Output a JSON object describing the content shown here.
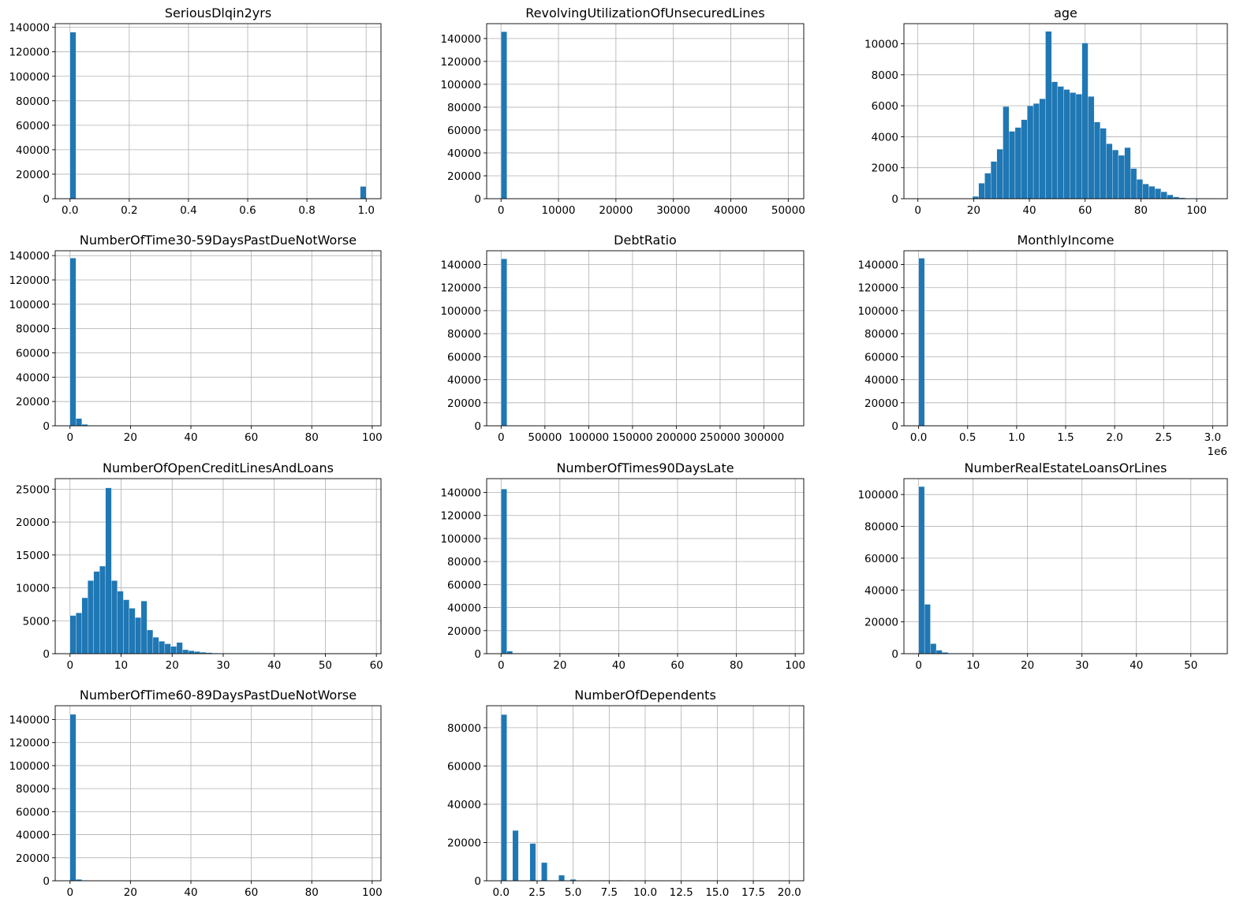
{
  "chart_data": [
    {
      "type": "bar",
      "title": "SeriousDlqin2yrs",
      "xlim": [
        -0.05,
        1.05
      ],
      "ylim": [
        0,
        143000
      ],
      "xticks": [
        0.0,
        0.2,
        0.4,
        0.6,
        0.8,
        1.0
      ],
      "xtick_labels": [
        "0.0",
        "0.2",
        "0.4",
        "0.6",
        "0.8",
        "1.0"
      ],
      "yticks": [
        0,
        20000,
        40000,
        60000,
        80000,
        100000,
        120000,
        140000
      ],
      "ytick_labels": [
        "0",
        "20000",
        "40000",
        "60000",
        "80000",
        "100000",
        "120000",
        "140000"
      ],
      "bins": {
        "start": 0.0,
        "width": 0.02
      },
      "bars": [
        {
          "i": 0,
          "v": 136000
        },
        {
          "i": 49,
          "v": 10000
        }
      ]
    },
    {
      "type": "bar",
      "title": "RevolvingUtilizationOfUnsecuredLines",
      "xlim": [
        -2500,
        52700
      ],
      "ylim": [
        0,
        153000
      ],
      "xticks": [
        0,
        10000,
        20000,
        30000,
        40000,
        50000
      ],
      "xtick_labels": [
        "0",
        "10000",
        "20000",
        "30000",
        "40000",
        "50000"
      ],
      "yticks": [
        0,
        20000,
        40000,
        60000,
        80000,
        100000,
        120000,
        140000
      ],
      "ytick_labels": [
        "0",
        "20000",
        "40000",
        "60000",
        "80000",
        "100000",
        "120000",
        "140000"
      ],
      "bins": {
        "start": 0,
        "width": 1017
      },
      "bars": [
        {
          "i": 0,
          "v": 146000
        }
      ]
    },
    {
      "type": "bar",
      "title": "age",
      "xlim": [
        -5,
        111
      ],
      "ylim": [
        0,
        11300
      ],
      "xticks": [
        0,
        20,
        40,
        60,
        80,
        100
      ],
      "xtick_labels": [
        "0",
        "20",
        "40",
        "60",
        "80",
        "100"
      ],
      "yticks": [
        0,
        2000,
        4000,
        6000,
        8000,
        10000
      ],
      "ytick_labels": [
        "0",
        "2000",
        "4000",
        "6000",
        "8000",
        "10000"
      ],
      "bins": {
        "start": 0,
        "width": 2.18
      },
      "bars": [
        {
          "i": 9,
          "v": 150
        },
        {
          "i": 10,
          "v": 1000
        },
        {
          "i": 11,
          "v": 1650
        },
        {
          "i": 12,
          "v": 2400
        },
        {
          "i": 13,
          "v": 3200
        },
        {
          "i": 14,
          "v": 5950
        },
        {
          "i": 15,
          "v": 4350
        },
        {
          "i": 16,
          "v": 4600
        },
        {
          "i": 17,
          "v": 5100
        },
        {
          "i": 18,
          "v": 6000
        },
        {
          "i": 19,
          "v": 6150
        },
        {
          "i": 20,
          "v": 6450
        },
        {
          "i": 21,
          "v": 10800
        },
        {
          "i": 22,
          "v": 7550
        },
        {
          "i": 23,
          "v": 7250
        },
        {
          "i": 24,
          "v": 7050
        },
        {
          "i": 25,
          "v": 6850
        },
        {
          "i": 26,
          "v": 6750
        },
        {
          "i": 27,
          "v": 10050
        },
        {
          "i": 28,
          "v": 6600
        },
        {
          "i": 29,
          "v": 4950
        },
        {
          "i": 30,
          "v": 4550
        },
        {
          "i": 31,
          "v": 3550
        },
        {
          "i": 32,
          "v": 3150
        },
        {
          "i": 33,
          "v": 2800
        },
        {
          "i": 34,
          "v": 3300
        },
        {
          "i": 35,
          "v": 1950
        },
        {
          "i": 36,
          "v": 1250
        },
        {
          "i": 37,
          "v": 950
        },
        {
          "i": 38,
          "v": 800
        },
        {
          "i": 39,
          "v": 650
        },
        {
          "i": 40,
          "v": 450
        },
        {
          "i": 41,
          "v": 250
        },
        {
          "i": 42,
          "v": 120
        },
        {
          "i": 43,
          "v": 60
        },
        {
          "i": 44,
          "v": 30
        },
        {
          "i": 45,
          "v": 15
        },
        {
          "i": 46,
          "v": 10
        },
        {
          "i": 47,
          "v": 5
        }
      ]
    },
    {
      "type": "bar",
      "title": "NumberOfTime30-59DaysPastDueNotWorse",
      "xlim": [
        -4.9,
        102.9
      ],
      "ylim": [
        0,
        144000
      ],
      "xticks": [
        0,
        20,
        40,
        60,
        80,
        100
      ],
      "xtick_labels": [
        "0",
        "20",
        "40",
        "60",
        "80",
        "100"
      ],
      "yticks": [
        0,
        20000,
        40000,
        60000,
        80000,
        100000,
        120000,
        140000
      ],
      "ytick_labels": [
        "0",
        "20000",
        "40000",
        "60000",
        "80000",
        "100000",
        "120000",
        "140000"
      ],
      "bins": {
        "start": 0,
        "width": 1.96
      },
      "bars": [
        {
          "i": 0,
          "v": 138000
        },
        {
          "i": 1,
          "v": 6000
        },
        {
          "i": 2,
          "v": 1200
        },
        {
          "i": 3,
          "v": 300
        },
        {
          "i": 49,
          "v": 270
        }
      ]
    },
    {
      "type": "bar",
      "title": "DebtRatio",
      "xlim": [
        -16500,
        345500
      ],
      "ylim": [
        0,
        152000
      ],
      "xticks": [
        0,
        50000,
        100000,
        150000,
        200000,
        250000,
        300000
      ],
      "xtick_labels": [
        "0",
        "50000",
        "100000",
        "150000",
        "200000",
        "250000",
        "300000"
      ],
      "yticks": [
        0,
        20000,
        40000,
        60000,
        80000,
        100000,
        120000,
        140000
      ],
      "ytick_labels": [
        "0",
        "20000",
        "40000",
        "60000",
        "80000",
        "100000",
        "120000",
        "140000"
      ],
      "bins": {
        "start": 0,
        "width": 6585
      },
      "bars": [
        {
          "i": 0,
          "v": 145000
        }
      ]
    },
    {
      "type": "bar",
      "title": "MonthlyIncome",
      "xlim": [
        -150000,
        3150000
      ],
      "ylim": [
        0,
        152000
      ],
      "xticks": [
        0,
        500000,
        1000000,
        1500000,
        2000000,
        2500000,
        3000000
      ],
      "xtick_labels": [
        "0.0",
        "0.5",
        "1.0",
        "1.5",
        "2.0",
        "2.5",
        "3.0"
      ],
      "offset_text": "1e6",
      "yticks": [
        0,
        20000,
        40000,
        60000,
        80000,
        100000,
        120000,
        140000
      ],
      "ytick_labels": [
        "0",
        "20000",
        "40000",
        "60000",
        "80000",
        "100000",
        "120000",
        "140000"
      ],
      "bins": {
        "start": 0,
        "width": 60200
      },
      "bars": [
        {
          "i": 0,
          "v": 145500
        }
      ]
    },
    {
      "type": "bar",
      "title": "NumberOfOpenCreditLinesAndLoans",
      "xlim": [
        -2.9,
        60.9
      ],
      "ylim": [
        0,
        26600
      ],
      "xticks": [
        0,
        10,
        20,
        30,
        40,
        50,
        60
      ],
      "xtick_labels": [
        "0",
        "10",
        "20",
        "30",
        "40",
        "50",
        "60"
      ],
      "yticks": [
        0,
        5000,
        10000,
        15000,
        20000,
        25000
      ],
      "ytick_labels": [
        "0",
        "5000",
        "10000",
        "15000",
        "20000",
        "25000"
      ],
      "bins": {
        "start": 0,
        "width": 1.16
      },
      "bars": [
        {
          "i": 0,
          "v": 5800
        },
        {
          "i": 1,
          "v": 6200
        },
        {
          "i": 2,
          "v": 8500
        },
        {
          "i": 3,
          "v": 11100
        },
        {
          "i": 4,
          "v": 12500
        },
        {
          "i": 5,
          "v": 13300
        },
        {
          "i": 6,
          "v": 25200
        },
        {
          "i": 7,
          "v": 11100
        },
        {
          "i": 8,
          "v": 9500
        },
        {
          "i": 9,
          "v": 8200
        },
        {
          "i": 10,
          "v": 6900
        },
        {
          "i": 11,
          "v": 5500
        },
        {
          "i": 12,
          "v": 8000
        },
        {
          "i": 13,
          "v": 3600
        },
        {
          "i": 14,
          "v": 2500
        },
        {
          "i": 15,
          "v": 1900
        },
        {
          "i": 16,
          "v": 1500
        },
        {
          "i": 17,
          "v": 1100
        },
        {
          "i": 18,
          "v": 1700
        },
        {
          "i": 19,
          "v": 600
        },
        {
          "i": 20,
          "v": 450
        },
        {
          "i": 21,
          "v": 320
        },
        {
          "i": 22,
          "v": 220
        },
        {
          "i": 23,
          "v": 150
        },
        {
          "i": 24,
          "v": 100
        },
        {
          "i": 25,
          "v": 60
        },
        {
          "i": 26,
          "v": 40
        },
        {
          "i": 27,
          "v": 25
        },
        {
          "i": 28,
          "v": 15
        },
        {
          "i": 29,
          "v": 10
        },
        {
          "i": 30,
          "v": 6
        },
        {
          "i": 31,
          "v": 4
        }
      ]
    },
    {
      "type": "bar",
      "title": "NumberOfTimes90DaysLate",
      "xlim": [
        -4.9,
        102.9
      ],
      "ylim": [
        0,
        152000
      ],
      "xticks": [
        0,
        20,
        40,
        60,
        80,
        100
      ],
      "xtick_labels": [
        "0",
        "20",
        "40",
        "60",
        "80",
        "100"
      ],
      "yticks": [
        0,
        20000,
        40000,
        60000,
        80000,
        100000,
        120000,
        140000
      ],
      "ytick_labels": [
        "0",
        "20000",
        "40000",
        "60000",
        "80000",
        "100000",
        "120000",
        "140000"
      ],
      "bins": {
        "start": 0,
        "width": 1.96
      },
      "bars": [
        {
          "i": 0,
          "v": 143000
        },
        {
          "i": 1,
          "v": 2200
        },
        {
          "i": 2,
          "v": 400
        },
        {
          "i": 49,
          "v": 270
        }
      ]
    },
    {
      "type": "bar",
      "title": "NumberRealEstateLoansOrLines",
      "xlim": [
        -2.7,
        56.7
      ],
      "ylim": [
        0,
        110000
      ],
      "xticks": [
        0,
        10,
        20,
        30,
        40,
        50
      ],
      "xtick_labels": [
        "0",
        "10",
        "20",
        "30",
        "40",
        "50"
      ],
      "yticks": [
        0,
        20000,
        40000,
        60000,
        80000,
        100000
      ],
      "ytick_labels": [
        "0",
        "20000",
        "40000",
        "60000",
        "80000",
        "100000"
      ],
      "bins": {
        "start": 0,
        "width": 1.08
      },
      "bars": [
        {
          "i": 0,
          "v": 105000
        },
        {
          "i": 1,
          "v": 31000
        },
        {
          "i": 2,
          "v": 6300
        },
        {
          "i": 3,
          "v": 2200
        },
        {
          "i": 4,
          "v": 800
        },
        {
          "i": 5,
          "v": 300
        },
        {
          "i": 6,
          "v": 100
        },
        {
          "i": 7,
          "v": 50
        },
        {
          "i": 8,
          "v": 20
        }
      ]
    },
    {
      "type": "bar",
      "title": "NumberOfTime60-89DaysPastDueNotWorse",
      "xlim": [
        -4.9,
        102.9
      ],
      "ylim": [
        0,
        152000
      ],
      "xticks": [
        0,
        20,
        40,
        60,
        80,
        100
      ],
      "xtick_labels": [
        "0",
        "20",
        "40",
        "60",
        "80",
        "100"
      ],
      "yticks": [
        0,
        20000,
        40000,
        60000,
        80000,
        100000,
        120000,
        140000
      ],
      "ytick_labels": [
        "0",
        "20000",
        "40000",
        "60000",
        "80000",
        "100000",
        "120000",
        "140000"
      ],
      "bins": {
        "start": 0,
        "width": 1.96
      },
      "bars": [
        {
          "i": 0,
          "v": 144500
        },
        {
          "i": 1,
          "v": 1200
        },
        {
          "i": 2,
          "v": 200
        },
        {
          "i": 49,
          "v": 270
        }
      ]
    },
    {
      "type": "bar",
      "title": "NumberOfDependents",
      "xlim": [
        -1.0,
        21.0
      ],
      "ylim": [
        0,
        91500
      ],
      "xticks": [
        0,
        2.5,
        5,
        7.5,
        10,
        12.5,
        15,
        17.5,
        20
      ],
      "xtick_labels": [
        "0.0",
        "2.5",
        "5.0",
        "7.5",
        "10.0",
        "12.5",
        "15.0",
        "17.5",
        "20.0"
      ],
      "yticks": [
        0,
        20000,
        40000,
        60000,
        80000
      ],
      "ytick_labels": [
        "0",
        "20000",
        "40000",
        "60000",
        "80000"
      ],
      "bins": {
        "start": 0,
        "width": 0.4
      },
      "bars": [
        {
          "i": 0,
          "v": 86900
        },
        {
          "i": 2,
          "v": 26300
        },
        {
          "i": 5,
          "v": 19500
        },
        {
          "i": 7,
          "v": 9500
        },
        {
          "i": 10,
          "v": 2900
        },
        {
          "i": 12,
          "v": 750
        },
        {
          "i": 15,
          "v": 160
        },
        {
          "i": 17,
          "v": 50
        },
        {
          "i": 20,
          "v": 20
        },
        {
          "i": 22,
          "v": 10
        }
      ]
    }
  ]
}
